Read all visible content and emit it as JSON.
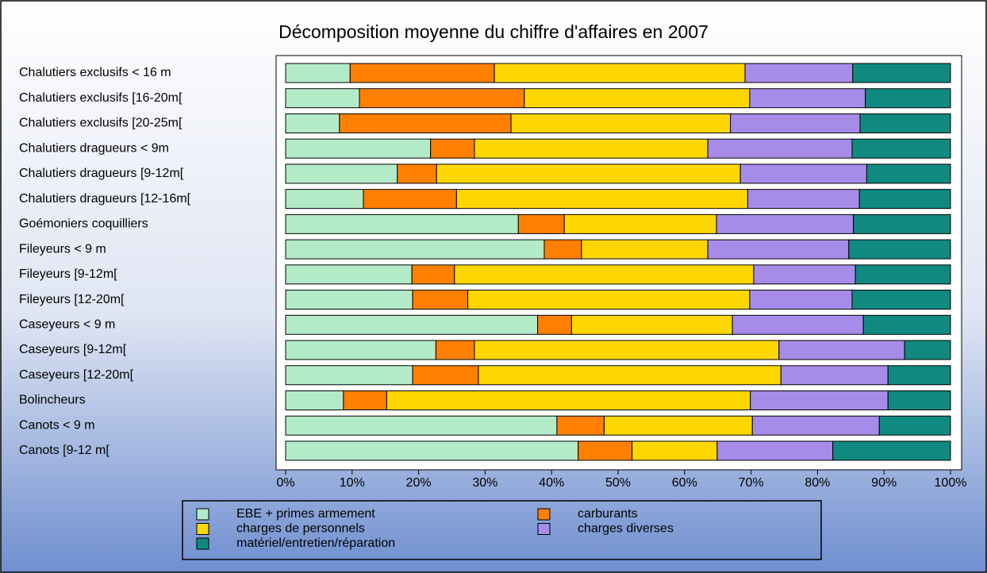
{
  "chart_data": {
    "type": "stacked-barh",
    "title": "Décomposition moyenne du chiffre d'affaires en 2007",
    "categories": [
      "Chalutiers exclusifs < 16 m",
      "Chalutiers exclusifs [16-20m[",
      "Chalutiers exclusifs [20-25m[",
      "Chalutiers dragueurs < 9m",
      "Chalutiers dragueurs [9-12m[",
      "Chalutiers dragueurs [12-16m[",
      "Goémoniers coquilliers",
      "Fileyeurs < 9 m",
      "Fileyeurs [9-12m[",
      "Fileyeurs [12-20m[",
      "Caseyeurs < 9 m",
      "Caseyeurs [9-12m[",
      "Caseyeurs [12-20m[",
      "Bolincheurs",
      "Canots < 9 m",
      "Canots [9-12 m["
    ],
    "series": [
      {
        "name": "EBE + primes armement",
        "color": "#b3ebc8",
        "values": [
          9.7,
          11.1,
          8.1,
          21.8,
          16.8,
          11.7,
          35.0,
          38.9,
          19.0,
          19.1,
          37.9,
          22.6,
          19.1,
          8.7,
          40.8,
          44.0
        ]
      },
      {
        "name": "carburants",
        "color": "#ff8000",
        "values": [
          21.7,
          24.8,
          25.8,
          6.6,
          5.9,
          14.0,
          6.9,
          5.6,
          6.4,
          8.3,
          5.1,
          5.8,
          9.9,
          6.5,
          7.1,
          8.1
        ]
      },
      {
        "name": "charges de personnels",
        "color": "#ffd700",
        "values": [
          37.7,
          33.9,
          33.0,
          35.1,
          45.7,
          43.8,
          22.9,
          19.0,
          45.0,
          42.4,
          24.2,
          45.8,
          45.5,
          54.7,
          22.3,
          12.8
        ]
      },
      {
        "name": "charges diverses",
        "color": "#a78be8",
        "values": [
          16.2,
          17.4,
          19.5,
          21.7,
          19.0,
          16.8,
          20.6,
          21.2,
          15.3,
          15.4,
          19.7,
          18.9,
          16.1,
          20.7,
          19.1,
          17.4
        ]
      },
      {
        "name": "matériel/entretien/réparation",
        "color": "#108a80",
        "values": [
          14.7,
          12.8,
          13.6,
          14.8,
          12.6,
          13.7,
          14.6,
          15.3,
          14.3,
          14.8,
          13.1,
          6.9,
          9.4,
          9.4,
          10.7,
          17.7
        ]
      }
    ],
    "xlim": [
      0,
      100
    ],
    "xticks": [
      {
        "value": 0,
        "label": "0%"
      },
      {
        "value": 10,
        "label": "10%"
      },
      {
        "value": 20,
        "label": "20%"
      },
      {
        "value": 30,
        "label": "30%"
      },
      {
        "value": 40,
        "label": "40%"
      },
      {
        "value": 50,
        "label": "50%"
      },
      {
        "value": 60,
        "label": "60%"
      },
      {
        "value": 70,
        "label": "70%"
      },
      {
        "value": 80,
        "label": "80%"
      },
      {
        "value": 90,
        "label": "90%"
      },
      {
        "value": 100,
        "label": "100%"
      }
    ]
  }
}
